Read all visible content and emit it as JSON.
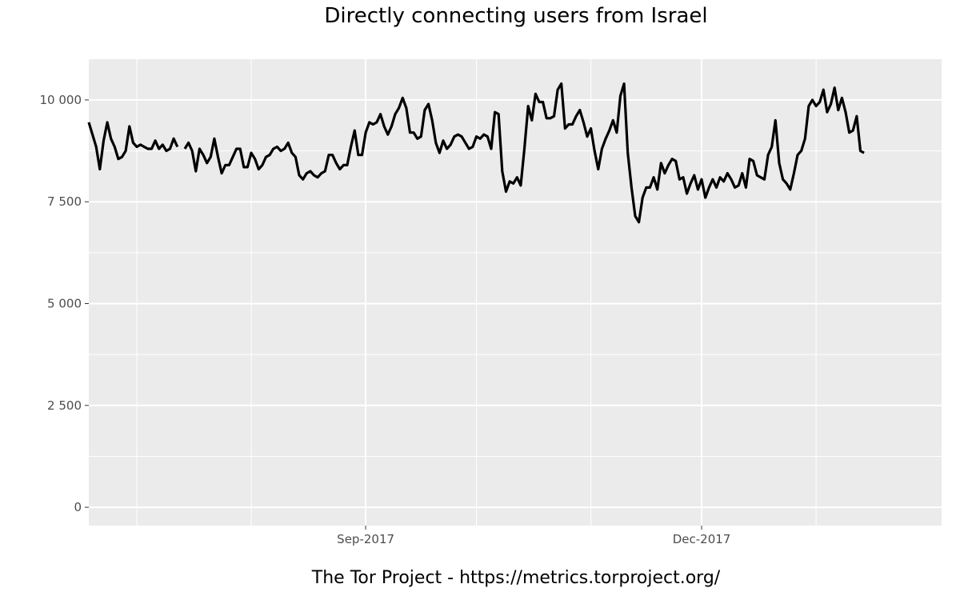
{
  "chart_data": {
    "type": "line",
    "title": "Directly connecting users from Israel",
    "caption": "The Tor Project - https://metrics.torproject.org/",
    "x_start": "2017-06-18",
    "x_end": "2018-02-04",
    "x_tick_labels": [
      {
        "date": "2017-09-01",
        "label": "Sep-2017"
      },
      {
        "date": "2017-12-01",
        "label": "Dec-2017"
      }
    ],
    "x_minor_dates": [
      "2017-07-01",
      "2017-08-01",
      "2017-10-01",
      "2017-11-01",
      "2018-01-01"
    ],
    "ylim": [
      -450,
      11000
    ],
    "y_ticks": [
      {
        "value": 0,
        "label": "0"
      },
      {
        "value": 2500,
        "label": "2 500"
      },
      {
        "value": 5000,
        "label": "5 000"
      },
      {
        "value": 7500,
        "label": "7 500"
      },
      {
        "value": 10000,
        "label": "10 000"
      }
    ],
    "y_minor": [
      1250,
      3750,
      6250,
      8750
    ],
    "grid": true,
    "series": [
      {
        "color": "#000000",
        "segments": [
          {
            "start": "2017-06-18",
            "values": [
              9450,
              9150,
              8850,
              8300,
              9000,
              9450,
              9050,
              8850,
              8550,
              8600,
              8750,
              9350,
              8950,
              8850,
              8900,
              8850,
              8800,
              8800,
              9000,
              8800,
              8900,
              8750,
              8800,
              9050,
              8850
            ]
          },
          {
            "start": "2017-07-14",
            "values": [
              8800,
              8950,
              8750,
              8250,
              8800,
              8650,
              8450,
              8600,
              9050,
              8600,
              8200,
              8400,
              8400,
              8600,
              8800,
              8800,
              8350,
              8350,
              8700,
              8550,
              8300,
              8400,
              8600,
              8650,
              8800,
              8850,
              8750,
              8800,
              8950,
              8700,
              8600,
              8150,
              8050,
              8200,
              8250,
              8150,
              8100,
              8200,
              8250,
              8650,
              8650,
              8450,
              8300,
              8400,
              8400,
              8850,
              9250,
              8650,
              8650,
              9200,
              9450,
              9400,
              9450,
              9650,
              9350,
              9150,
              9350,
              9650,
              9800,
              10050,
              9800,
              9200,
              9200,
              9050,
              9100,
              9750,
              9900,
              9500,
              8950,
              8700,
              9000,
              8800,
              8900,
              9100,
              9150,
              9100,
              8950,
              8800,
              8850,
              9100,
              9050,
              9150,
              9100,
              8800,
              9700,
              9650,
              8250,
              7750,
              8000,
              7950,
              8100,
              7900,
              8800,
              9850,
              9500,
              10150,
              9950,
              9950,
              9550,
              9550,
              9600,
              10250,
              10400,
              9300,
              9400,
              9400,
              9600,
              9750,
              9450,
              9100,
              9300,
              8750,
              8300,
              8800,
              9050,
              9250,
              9500,
              9200,
              10100,
              10400,
              8700,
              7850,
              7150,
              7000,
              7600,
              7850,
              7850,
              8100,
              7800,
              8450,
              8200,
              8400,
              8550,
              8500,
              8050,
              8100,
              7700,
              7950,
              8150,
              7800,
              8050,
              7600,
              7850,
              8050,
              7850,
              8100,
              8000,
              8200,
              8050,
              7850,
              7900,
              8200,
              7850,
              8550,
              8500,
              8150,
              8100,
              8050,
              8650,
              8850,
              9500,
              8450,
              8050,
              7950,
              7800,
              8200,
              8650,
              8750,
              9050,
              9850,
              10000,
              9850,
              9950,
              10250,
              9700,
              9900,
              10300,
              9750,
              10050,
              9700,
              9200,
              9250,
              9600,
              8750,
              8700
            ]
          }
        ]
      }
    ]
  }
}
